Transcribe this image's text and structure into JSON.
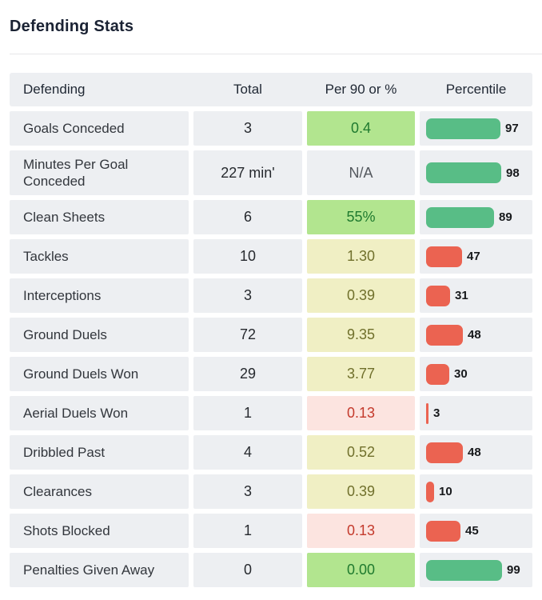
{
  "page": {
    "title": "Defending Stats"
  },
  "table": {
    "headers": {
      "defending": "Defending",
      "total": "Total",
      "per90": "Per 90 or %",
      "percentile": "Percentile"
    },
    "rows": [
      {
        "label": "Goals Conceded",
        "total": "3",
        "per90": "0.4",
        "rating": "good",
        "percentile": 97,
        "bar_color": "green"
      },
      {
        "label": "Minutes Per Goal Conceded",
        "total": "227 min'",
        "per90": "N/A",
        "rating": "na",
        "percentile": 98,
        "bar_color": "green"
      },
      {
        "label": "Clean Sheets",
        "total": "6",
        "per90": "55%",
        "rating": "good",
        "percentile": 89,
        "bar_color": "green"
      },
      {
        "label": "Tackles",
        "total": "10",
        "per90": "1.30",
        "rating": "average",
        "percentile": 47,
        "bar_color": "red"
      },
      {
        "label": "Interceptions",
        "total": "3",
        "per90": "0.39",
        "rating": "average",
        "percentile": 31,
        "bar_color": "red"
      },
      {
        "label": "Ground Duels",
        "total": "72",
        "per90": "9.35",
        "rating": "average",
        "percentile": 48,
        "bar_color": "red"
      },
      {
        "label": "Ground Duels Won",
        "total": "29",
        "per90": "3.77",
        "rating": "average",
        "percentile": 30,
        "bar_color": "red"
      },
      {
        "label": "Aerial Duels Won",
        "total": "1",
        "per90": "0.13",
        "rating": "poor",
        "percentile": 3,
        "bar_color": "red"
      },
      {
        "label": "Dribbled Past",
        "total": "4",
        "per90": "0.52",
        "rating": "average",
        "percentile": 48,
        "bar_color": "red"
      },
      {
        "label": "Clearances",
        "total": "3",
        "per90": "0.39",
        "rating": "average",
        "percentile": 10,
        "bar_color": "red"
      },
      {
        "label": "Shots Blocked",
        "total": "1",
        "per90": "0.13",
        "rating": "poor",
        "percentile": 45,
        "bar_color": "red"
      },
      {
        "label": "Penalties Given Away",
        "total": "0",
        "per90": "0.00",
        "rating": "good",
        "percentile": 99,
        "bar_color": "green"
      }
    ]
  },
  "colors": {
    "cell_bg": "#edeff2",
    "per90_good_bg": "#b2e58f",
    "per90_good_text": "#1f7a2f",
    "per90_average_bg": "#f0efc4",
    "per90_average_text": "#70702c",
    "per90_poor_bg": "#fce4e0",
    "per90_poor_text": "#c43a2c",
    "bar_green": "#58bd86",
    "bar_red": "#eb6351"
  }
}
